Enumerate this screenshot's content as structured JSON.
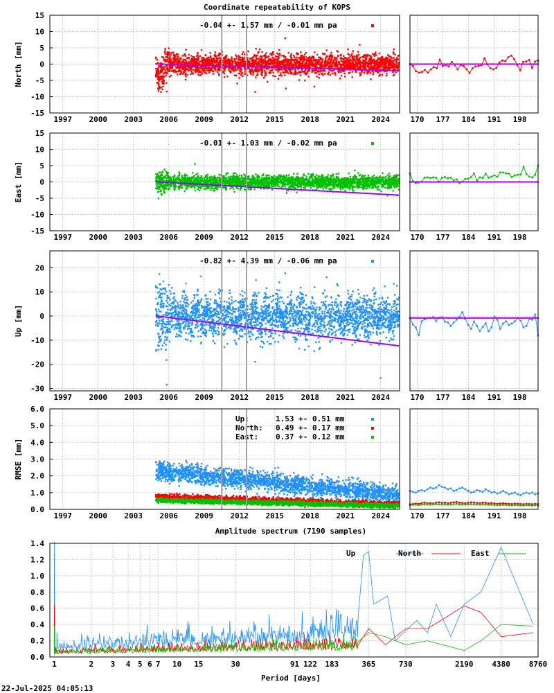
{
  "figure": {
    "title": "Coordinate repeatability of KOPS",
    "timestamp": "22-Jul-2025 04:05:13"
  },
  "colors": {
    "north": "#ff0000",
    "east": "#00c000",
    "up": "#1e90ff",
    "trend": "#a000ff",
    "break_line": "#a0a0a0",
    "grid": "#999999"
  },
  "chart_data": [
    {
      "type": "scatter",
      "name": "north-panel",
      "ylabel": "North [mm]",
      "ylim": [
        -15,
        15
      ],
      "yticks": [
        15,
        10,
        5,
        0,
        -5,
        -10,
        -15
      ],
      "xticks": [
        "1997",
        "2000",
        "2003",
        "2006",
        "2009",
        "2012",
        "2015",
        "2018",
        "2021",
        "2024"
      ],
      "xlim": [
        1995.9,
        2025.6
      ],
      "data_start": 2004.9,
      "annotation": "-0.04 +- 1.57 mm / -0.01 mm pa",
      "legend_marker_color": "#ff0000",
      "series_color": "#ff0000",
      "spread_mm": 1.57,
      "trend_mm_pa": -0.01,
      "break_years": [
        2010.5,
        2012.6
      ],
      "recent": {
        "xticks": [
          "170",
          "177",
          "184",
          "191",
          "198"
        ],
        "xlim": [
          168,
          203
        ],
        "ylim": [
          -15,
          15
        ],
        "values": [
          0.0,
          -0.6,
          -2.2,
          -2.6,
          -2.4,
          -1.8,
          -2.6,
          -1.6,
          -0.9,
          -1.3,
          1.4,
          -0.6,
          -0.2,
          -0.7,
          0.7,
          -0.3,
          -1.6,
          -0.2,
          -0.6,
          -1.6,
          -2.7,
          -1.3,
          -0.7,
          -0.6,
          -0.3,
          1.8,
          -0.1,
          -1.3,
          -1.6,
          -1.2,
          0.5,
          1.1,
          0.9,
          2.1,
          2.6,
          1.5,
          -0.3,
          -1.9,
          0.7,
          0.8,
          1.3,
          -1.2,
          0.8,
          1.1
        ]
      }
    },
    {
      "type": "scatter",
      "name": "east-panel",
      "ylabel": "East [mm]",
      "ylim": [
        -15,
        15
      ],
      "yticks": [
        15,
        10,
        5,
        0,
        -5,
        -10,
        -15
      ],
      "xticks": [
        "1997",
        "2000",
        "2003",
        "2006",
        "2009",
        "2012",
        "2015",
        "2018",
        "2021",
        "2024"
      ],
      "xlim": [
        1995.9,
        2025.6
      ],
      "data_start": 2004.9,
      "annotation": "-0.01 +- 1.03 mm / -0.02 mm pa",
      "legend_marker_color": "#00c000",
      "series_color": "#00c000",
      "spread_mm": 1.03,
      "trend_mm_pa": -0.02,
      "break_years": [
        2010.5,
        2012.6
      ],
      "recent": {
        "xticks": [
          "170",
          "177",
          "184",
          "191",
          "198"
        ],
        "xlim": [
          168,
          203
        ],
        "ylim": [
          -15,
          15
        ],
        "values": [
          2.6,
          0.2,
          -0.4,
          -0.2,
          0.1,
          1.3,
          1.4,
          1.2,
          1.4,
          1.3,
          0.0,
          1.3,
          1.5,
          1.1,
          1.3,
          0.5,
          0.8,
          -0.4,
          0.1,
          0.9,
          1.0,
          1.5,
          2.6,
          0.5,
          1.4,
          1.2,
          2.5,
          1.3,
          1.6,
          2.0,
          1.6,
          2.9,
          2.9,
          2.6,
          2.5,
          1.5,
          2.0,
          2.2,
          2.3,
          4.6,
          2.4,
          1.6,
          1.4,
          2.2,
          5.0
        ]
      }
    },
    {
      "type": "scatter",
      "name": "up-panel",
      "ylabel": "Up [mm]",
      "ylim": [
        -31,
        27
      ],
      "yticks": [
        20,
        10,
        0,
        -10,
        -20,
        -30
      ],
      "xticks": [
        "1997",
        "2000",
        "2003",
        "2006",
        "2009",
        "2012",
        "2015",
        "2018",
        "2021",
        "2024"
      ],
      "xlim": [
        1995.9,
        2025.6
      ],
      "data_start": 2004.9,
      "annotation": "-0.82 +- 4.39 mm / -0.06 mm pa",
      "legend_marker_color": "#1e90ff",
      "series_color": "#1e90ff",
      "spread_mm": 4.39,
      "trend_mm_pa": -0.06,
      "break_years": [
        2010.5,
        2012.6
      ],
      "recent": {
        "xticks": [
          "170",
          "177",
          "184",
          "191",
          "198"
        ],
        "xlim": [
          168,
          203
        ],
        "ylim": [
          -31,
          27
        ],
        "values": [
          -0.7,
          -3.5,
          -4.7,
          -7.9,
          -2.2,
          -1.4,
          -0.9,
          -0.8,
          -0.4,
          -2.1,
          -0.7,
          -0.5,
          -2.3,
          -2.6,
          -4.2,
          -2.7,
          -1.5,
          -0.3,
          1.6,
          -1.3,
          -3.7,
          -5.3,
          -2.2,
          -4.1,
          -6.2,
          -4.5,
          -3.0,
          -6.3,
          -4.7,
          -0.3,
          -1.5,
          -5.3,
          -3.1,
          -2.2,
          -3.7,
          -3.1,
          -2.2,
          -0.8,
          -1.9,
          -4.7,
          -4.1,
          -1.2,
          -1.5,
          0.6,
          -8.0
        ]
      }
    },
    {
      "type": "scatter",
      "name": "rmse-panel",
      "ylabel": "RMSE [mm]",
      "ylim": [
        0,
        6
      ],
      "yticks": [
        "6.0",
        "5.0",
        "4.0",
        "3.0",
        "2.0",
        "1.0",
        "0.0"
      ],
      "xticks": [
        "1997",
        "2000",
        "2003",
        "2006",
        "2009",
        "2012",
        "2015",
        "2018",
        "2021",
        "2024"
      ],
      "xlim": [
        1995.9,
        2025.6
      ],
      "data_start": 2004.9,
      "break_years": [
        2010.5,
        2012.6
      ],
      "legend": [
        {
          "label": "Up:",
          "value": "1.53 +- 0.51 mm",
          "color": "#1e90ff"
        },
        {
          "label": "North:",
          "value": "0.49 +- 0.17 mm",
          "color": "#ff0000"
        },
        {
          "label": "East:",
          "value": "0.37 +- 0.12 mm",
          "color": "#00c000"
        }
      ],
      "series": [
        {
          "name": "Up",
          "color": "#1e90ff",
          "mean": 1.53,
          "spread": 0.51
        },
        {
          "name": "North",
          "color": "#ff0000",
          "mean": 0.49,
          "spread": 0.17
        },
        {
          "name": "East",
          "color": "#00c000",
          "mean": 0.37,
          "spread": 0.12
        }
      ],
      "recent": {
        "xticks": [
          "170",
          "177",
          "184",
          "191",
          "198"
        ],
        "xlim": [
          168,
          203
        ],
        "ylim": [
          0,
          6
        ],
        "series": [
          {
            "name": "Up",
            "color": "#1e90ff",
            "values": [
              1.1,
              1.05,
              1.0,
              1.1,
              1.15,
              1.1,
              1.2,
              1.3,
              1.25,
              1.3,
              1.45,
              1.35,
              1.3,
              1.2,
              1.25,
              1.1,
              1.15,
              1.25,
              1.3,
              1.2,
              1.1,
              1.0,
              1.05,
              1.15,
              1.1,
              1.05,
              1.2,
              1.1,
              1.0,
              1.05,
              0.95,
              1.0,
              1.1,
              1.0,
              0.9,
              0.95,
              1.0,
              0.9,
              0.85,
              0.95,
              1.0,
              0.95,
              1.0,
              0.9,
              0.95
            ]
          },
          {
            "name": "North",
            "color": "#ff0000",
            "values": [
              0.3,
              0.32,
              0.35,
              0.33,
              0.37,
              0.4,
              0.36,
              0.38,
              0.35,
              0.4,
              0.42,
              0.38,
              0.4,
              0.37,
              0.39,
              0.42,
              0.45,
              0.4,
              0.38,
              0.36,
              0.4,
              0.42,
              0.4,
              0.38,
              0.37,
              0.4,
              0.39,
              0.36,
              0.38,
              0.35,
              0.33,
              0.35,
              0.36,
              0.34,
              0.33,
              0.32,
              0.34,
              0.33,
              0.32,
              0.31,
              0.33,
              0.32,
              0.31,
              0.33,
              0.32
            ]
          },
          {
            "name": "East",
            "color": "#00c000",
            "values": [
              0.25,
              0.27,
              0.28,
              0.26,
              0.28,
              0.3,
              0.29,
              0.28,
              0.3,
              0.31,
              0.3,
              0.29,
              0.3,
              0.28,
              0.29,
              0.31,
              0.33,
              0.3,
              0.29,
              0.28,
              0.3,
              0.31,
              0.3,
              0.29,
              0.28,
              0.3,
              0.29,
              0.27,
              0.28,
              0.26,
              0.25,
              0.26,
              0.27,
              0.26,
              0.25,
              0.24,
              0.26,
              0.25,
              0.24,
              0.23,
              0.25,
              0.24,
              0.23,
              0.25,
              0.24
            ]
          }
        ]
      }
    },
    {
      "type": "line",
      "name": "spectrum-panel",
      "title": "Amplitude spectrum (7190 samples)",
      "xlabel": "Period [days]",
      "xscale": "log",
      "xlim": [
        0.92,
        8760
      ],
      "ylim": [
        0,
        1.4
      ],
      "yticks": [
        "1.4",
        "1.2",
        "1.0",
        "0.8",
        "0.6",
        "0.4",
        "0.2",
        "0.0"
      ],
      "xticks": [
        {
          "label": "1",
          "value": 1
        },
        {
          "label": "2",
          "value": 2
        },
        {
          "label": "3",
          "value": 3
        },
        {
          "label": "4",
          "value": 4
        },
        {
          "label": "5",
          "value": 5
        },
        {
          "label": "6",
          "value": 6
        },
        {
          "label": "7",
          "value": 7
        },
        {
          "label": "10",
          "value": 10
        },
        {
          "label": "15",
          "value": 15
        },
        {
          "label": "30",
          "value": 30
        },
        {
          "label": "91",
          "value": 91
        },
        {
          "label": "122",
          "value": 122
        },
        {
          "label": "183",
          "value": 183
        },
        {
          "label": "365",
          "value": 365
        },
        {
          "label": "730",
          "value": 730
        },
        {
          "label": "2190",
          "value": 2190
        },
        {
          "label": "4380",
          "value": 4380
        },
        {
          "label": "8760",
          "value": 8760
        }
      ],
      "legend": [
        {
          "label": "Up",
          "color": "#1e90ff"
        },
        {
          "label": "North",
          "color": "#ff0000"
        },
        {
          "label": "East",
          "color": "#00c000"
        }
      ],
      "series": [
        {
          "name": "Up",
          "color": "#1e90ff",
          "noise_floor": 0.08,
          "peaks": [
            [
              1.0,
              1.42
            ],
            [
              1.05,
              0.3
            ],
            [
              330,
              1.25
            ],
            [
              365,
              1.3
            ],
            [
              400,
              0.65
            ],
            [
              520,
              0.75
            ],
            [
              600,
              0.2
            ],
            [
              900,
              0.45
            ],
            [
              1100,
              0.3
            ],
            [
              1300,
              0.65
            ],
            [
              1700,
              0.25
            ],
            [
              2190,
              0.65
            ],
            [
              3000,
              0.8
            ],
            [
              4380,
              1.35
            ],
            [
              8000,
              0.4
            ]
          ]
        },
        {
          "name": "North",
          "color": "#ff0000",
          "noise_floor": 0.04,
          "peaks": [
            [
              1.0,
              0.65
            ],
            [
              365,
              0.35
            ],
            [
              500,
              0.15
            ],
            [
              730,
              0.35
            ],
            [
              1100,
              0.35
            ],
            [
              1600,
              0.5
            ],
            [
              2190,
              0.63
            ],
            [
              3000,
              0.55
            ],
            [
              4380,
              0.25
            ],
            [
              8000,
              0.3
            ]
          ]
        },
        {
          "name": "East",
          "color": "#00c000",
          "noise_floor": 0.035,
          "peaks": [
            [
              1.0,
              0.38
            ],
            [
              365,
              0.3
            ],
            [
              500,
              0.25
            ],
            [
              730,
              0.15
            ],
            [
              1100,
              0.2
            ],
            [
              2190,
              0.08
            ],
            [
              3000,
              0.2
            ],
            [
              4380,
              0.4
            ],
            [
              8000,
              0.38
            ]
          ]
        }
      ]
    }
  ]
}
